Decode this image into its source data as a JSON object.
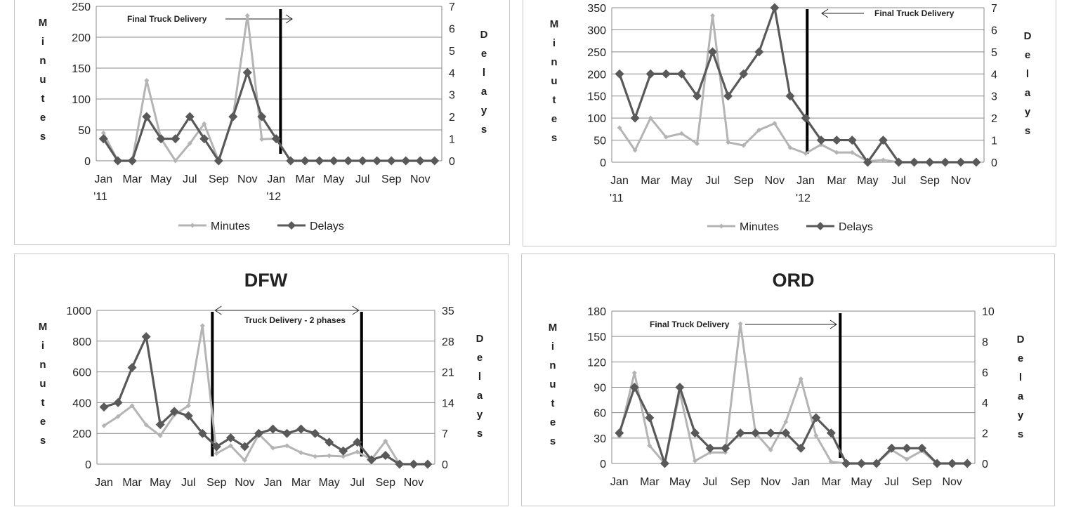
{
  "chart_data": [
    {
      "type": "line",
      "title": "",
      "ylabel": "Minutes",
      "y2label": "Delays",
      "ylim": [
        0,
        250
      ],
      "y2lim": [
        0,
        7
      ],
      "yticks": [
        0,
        50,
        100,
        150,
        200,
        250
      ],
      "y2ticks": [
        0,
        1,
        2,
        3,
        4,
        5,
        6,
        7
      ],
      "x_tick_labels": [
        {
          "label": "Jan",
          "sub": "'11",
          "i": 0
        },
        {
          "label": "Mar",
          "i": 2
        },
        {
          "label": "May",
          "i": 4
        },
        {
          "label": "Jul",
          "i": 6
        },
        {
          "label": "Sep",
          "i": 8
        },
        {
          "label": "Nov",
          "i": 10
        },
        {
          "label": "Jan",
          "sub": "'12",
          "i": 12
        },
        {
          "label": "Mar",
          "i": 14
        },
        {
          "label": "May",
          "i": 16
        },
        {
          "label": "Jul",
          "i": 18
        },
        {
          "label": "Sep",
          "i": 20
        },
        {
          "label": "Nov",
          "i": 22
        }
      ],
      "series": [
        {
          "name": "Minutes",
          "axis": "left",
          "color": "#b4b4b4",
          "values": [
            45,
            0,
            0,
            130,
            36,
            0,
            28,
            60,
            0,
            71,
            235,
            35,
            36,
            0,
            0,
            0,
            0,
            0,
            0,
            0,
            0,
            0,
            0,
            0
          ]
        },
        {
          "name": "Delays",
          "axis": "right",
          "color": "#595959",
          "values": [
            1,
            0,
            0,
            2,
            1,
            1,
            2,
            1,
            0,
            2,
            4,
            2,
            1,
            0,
            0,
            0,
            0,
            0,
            0,
            0,
            0,
            0,
            0,
            0
          ]
        }
      ],
      "annotations": [
        {
          "text": "Final Truck Delivery",
          "arrow": "right",
          "line_at": 12.3
        }
      ],
      "legend": "bottom"
    },
    {
      "type": "line",
      "title": "",
      "ylabel": "Minutes",
      "y2label": "Delays",
      "ylim": [
        0,
        350
      ],
      "y2lim": [
        0,
        7
      ],
      "yticks": [
        0,
        50,
        100,
        150,
        200,
        250,
        300,
        350
      ],
      "y2ticks": [
        0,
        1,
        2,
        3,
        4,
        5,
        6,
        7
      ],
      "x_tick_labels": [
        {
          "label": "Jan",
          "sub": "'11",
          "i": 0
        },
        {
          "label": "Mar",
          "i": 2
        },
        {
          "label": "May",
          "i": 4
        },
        {
          "label": "Jul",
          "i": 6
        },
        {
          "label": "Sep",
          "i": 8
        },
        {
          "label": "Nov",
          "i": 10
        },
        {
          "label": "Jan",
          "sub": "'12",
          "i": 12
        },
        {
          "label": "Mar",
          "i": 14
        },
        {
          "label": "May",
          "i": 16
        },
        {
          "label": "Jul",
          "i": 18
        },
        {
          "label": "Sep",
          "i": 20
        },
        {
          "label": "Nov",
          "i": 22
        }
      ],
      "series": [
        {
          "name": "Minutes",
          "axis": "left",
          "color": "#b4b4b4",
          "values": [
            78,
            27,
            100,
            57,
            65,
            42,
            332,
            45,
            38,
            73,
            88,
            33,
            20,
            40,
            22,
            22,
            2,
            5,
            0,
            0,
            0,
            0,
            0,
            0
          ]
        },
        {
          "name": "Delays",
          "axis": "right",
          "color": "#595959",
          "values": [
            4,
            2,
            4,
            4,
            4,
            3,
            5,
            3,
            4,
            5,
            7,
            3,
            2,
            1,
            1,
            1,
            0,
            1,
            0,
            0,
            0,
            0,
            0,
            0
          ]
        }
      ],
      "annotations": [
        {
          "text": "Final Truck Delivery",
          "arrow": "left",
          "line_at": 12.1
        }
      ],
      "legend": "bottom"
    },
    {
      "type": "line",
      "title": "DFW",
      "ylabel": "Minutes",
      "y2label": "Delays",
      "ylim": [
        0,
        1000
      ],
      "y2lim": [
        0,
        35
      ],
      "yticks": [
        0,
        200,
        400,
        600,
        800,
        1000
      ],
      "y2ticks": [
        0,
        7,
        14,
        21,
        28,
        35
      ],
      "x_tick_labels": [
        {
          "label": "Jan",
          "i": 0
        },
        {
          "label": "Mar",
          "i": 2
        },
        {
          "label": "May",
          "i": 4
        },
        {
          "label": "Jul",
          "i": 6
        },
        {
          "label": "Sep",
          "i": 8
        },
        {
          "label": "Nov",
          "i": 10
        },
        {
          "label": "Jan",
          "i": 12
        },
        {
          "label": "Mar",
          "i": 14
        },
        {
          "label": "May",
          "i": 16
        },
        {
          "label": "Jul",
          "i": 18
        },
        {
          "label": "Sep",
          "i": 20
        },
        {
          "label": "Nov",
          "i": 22
        }
      ],
      "series": [
        {
          "name": "Minutes",
          "axis": "left",
          "color": "#b4b4b4",
          "values": [
            250,
            310,
            380,
            255,
            185,
            320,
            380,
            900,
            70,
            120,
            25,
            195,
            105,
            120,
            75,
            50,
            55,
            50,
            80,
            30,
            150,
            0,
            0,
            0
          ]
        },
        {
          "name": "Delays",
          "axis": "right",
          "color": "#595959",
          "values": [
            13,
            14,
            22,
            29,
            9,
            12,
            11,
            7,
            4,
            6,
            4,
            7,
            8,
            7,
            8,
            7,
            5,
            3,
            5,
            1,
            2,
            0,
            0,
            0
          ]
        }
      ],
      "annotations": [
        {
          "text": "Truck Delivery - 2 phases",
          "arrow": "both",
          "lines_at": [
            7.7,
            18.3
          ]
        }
      ],
      "legend": "none"
    },
    {
      "type": "line",
      "title": "ORD",
      "ylabel": "Minutes",
      "y2label": "Delays",
      "ylim": [
        0,
        180
      ],
      "y2lim": [
        0,
        10
      ],
      "yticks": [
        0,
        30,
        60,
        90,
        120,
        150,
        180
      ],
      "y2ticks": [
        0,
        2,
        4,
        6,
        8,
        10
      ],
      "x_tick_labels": [
        {
          "label": "Jan",
          "i": 0
        },
        {
          "label": "Mar",
          "i": 2
        },
        {
          "label": "May",
          "i": 4
        },
        {
          "label": "Jul",
          "i": 6
        },
        {
          "label": "Sep",
          "i": 8
        },
        {
          "label": "Nov",
          "i": 10
        },
        {
          "label": "Jan",
          "i": 12
        },
        {
          "label": "Mar",
          "i": 14
        },
        {
          "label": "May",
          "i": 16
        },
        {
          "label": "Jul",
          "i": 18
        },
        {
          "label": "Sep",
          "i": 20
        },
        {
          "label": "Nov",
          "i": 22
        }
      ],
      "series": [
        {
          "name": "Minutes",
          "axis": "left",
          "color": "#b4b4b4",
          "values": [
            32,
            107,
            21,
            0,
            84,
            3,
            13,
            13,
            165,
            36,
            16,
            49,
            100,
            33,
            2,
            0,
            0,
            0,
            16,
            5,
            15,
            0,
            0,
            0
          ]
        },
        {
          "name": "Delays",
          "axis": "right",
          "color": "#595959",
          "values": [
            2,
            5,
            3,
            0,
            5,
            2,
            1,
            1,
            2,
            2,
            2,
            2,
            1,
            3,
            2,
            0,
            0,
            0,
            1,
            1,
            1,
            0,
            0,
            0
          ]
        }
      ],
      "annotations": [
        {
          "text": "Final Truck Delivery",
          "arrow": "right",
          "line_at": 14.6
        }
      ],
      "legend": "none"
    }
  ]
}
